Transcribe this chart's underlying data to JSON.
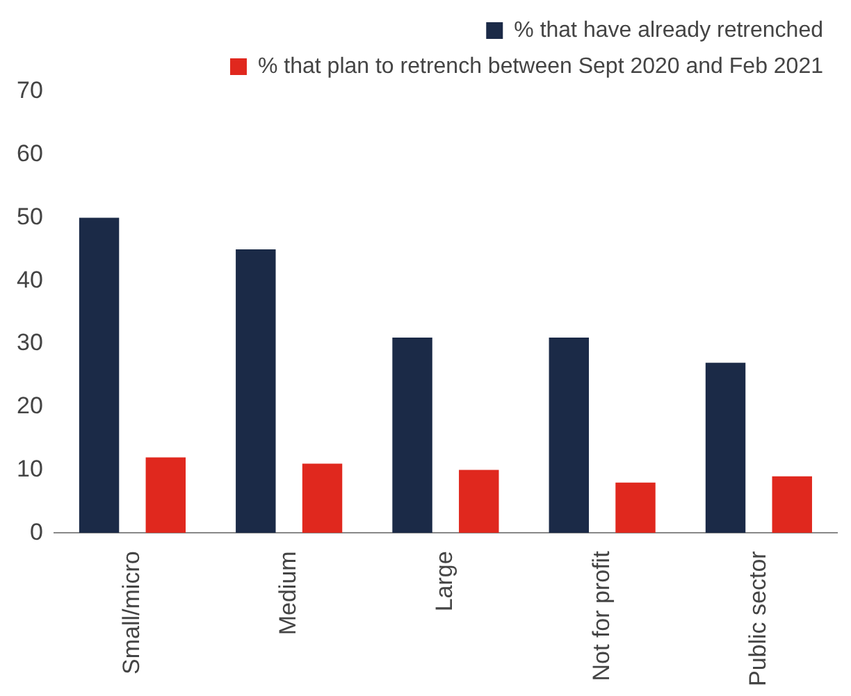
{
  "chart_data": {
    "type": "bar",
    "categories": [
      "Small/micro",
      "Medium",
      "Large",
      "Not for profit",
      "Public sector"
    ],
    "series": [
      {
        "name": "% that have already retrenched",
        "color": "#1b2a47",
        "values": [
          50,
          45,
          31,
          31,
          27
        ]
      },
      {
        "name": "% that plan to retrench between Sept 2020 and Feb 2021",
        "color": "#e0281e",
        "values": [
          12,
          11,
          10,
          8,
          9
        ]
      }
    ],
    "ylim": [
      0,
      70
    ],
    "yticks": [
      0,
      10,
      20,
      30,
      40,
      50,
      60,
      70
    ],
    "grid": false,
    "legend": "top right"
  }
}
